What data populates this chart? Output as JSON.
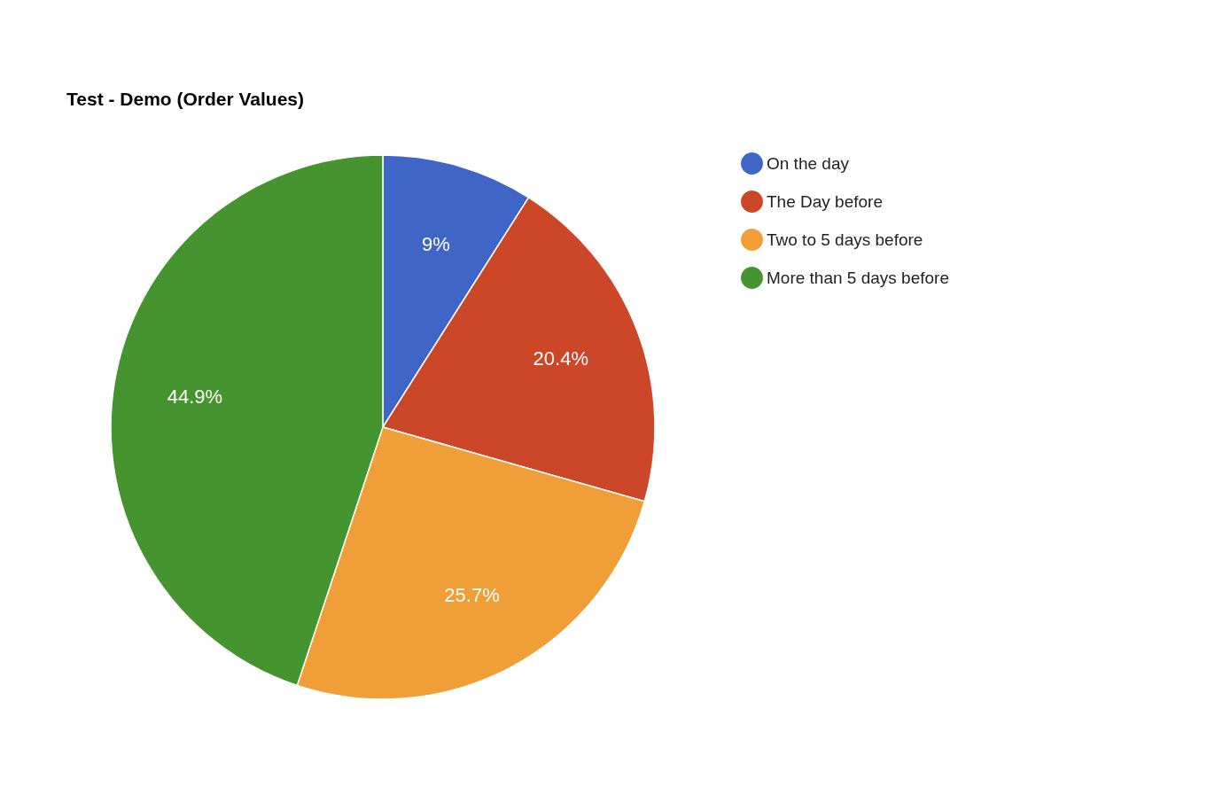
{
  "chart_data": {
    "type": "pie",
    "title": "Test - Demo (Order Values)",
    "categories": [
      "On the day",
      "The Day before",
      "Two to 5 days before",
      "More than 5 days before"
    ],
    "values": [
      9,
      20.4,
      25.7,
      44.9
    ],
    "value_labels": [
      "9%",
      "20.4%",
      "25.7%",
      "44.9%"
    ],
    "colors": [
      "#3f66c6",
      "#cc4727",
      "#f09e38",
      "#46942f"
    ],
    "legend": "right"
  }
}
